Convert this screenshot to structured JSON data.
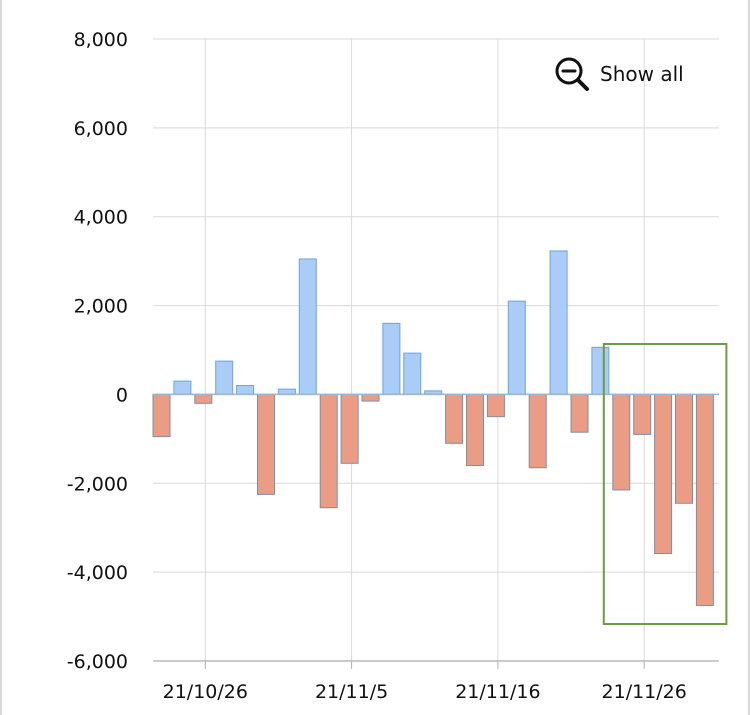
{
  "zoom_control": {
    "label": "Show all",
    "icon": "zoom-out-icon"
  },
  "chart_data": {
    "type": "bar",
    "title": "",
    "xlabel": "",
    "ylabel": "",
    "ylim": [
      -6000,
      8000
    ],
    "yticks": [
      8000,
      6000,
      4000,
      2000,
      0,
      -2000,
      -4000,
      -6000
    ],
    "ytick_labels": [
      "8,000",
      "6,000",
      "4,000",
      "2,000",
      "0",
      "-2,000",
      "-4,000",
      "-6,000"
    ],
    "xtick_labels": [
      "21/10/26",
      "21/11/5",
      "21/11/16",
      "21/11/26"
    ],
    "xtick_bar_positions": [
      2,
      9,
      16,
      23
    ],
    "grid": true,
    "positive_color": "#a9cdf7",
    "positive_edge": "#6fa3d9",
    "negative_color": "#eb9c85",
    "negative_edge": "#7a90a8",
    "highlight_color": "#6f9a44",
    "highlight_range": [
      22,
      26
    ],
    "bars": [
      [
        -950
      ],
      [
        300,
        -200
      ],
      [
        750
      ],
      [
        200,
        -2250
      ],
      [
        120
      ],
      [
        3050,
        -2550
      ],
      [
        -1550
      ],
      [
        -150
      ],
      [
        1600
      ],
      [
        930
      ],
      [
        80,
        -1100
      ],
      [
        -1600
      ],
      [
        -500
      ],
      [
        2100,
        -1650
      ],
      [
        3230
      ],
      [
        -850
      ],
      [
        1060
      ],
      [
        -2150
      ],
      [
        -900
      ],
      [
        -3580
      ],
      [
        -2450
      ],
      [
        -4750
      ]
    ]
  }
}
